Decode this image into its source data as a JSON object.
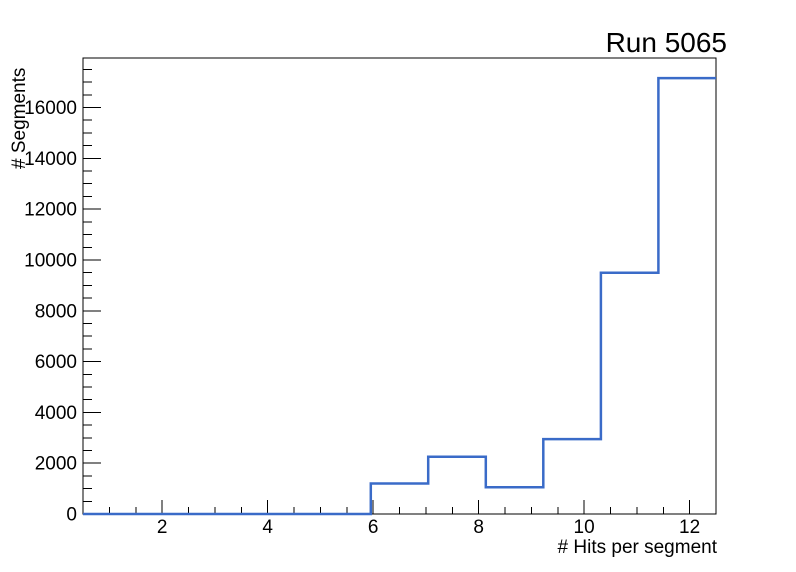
{
  "chart_data": {
    "type": "bar",
    "style": "step-histogram-outline",
    "title": "Run 5065",
    "xlabel": "# Hits per segment",
    "ylabel": "# Segments",
    "xlim": [
      0.5,
      12.5
    ],
    "ylim": [
      0,
      17950
    ],
    "n_bins": 11,
    "bin_width": 1.0909,
    "bin_edges": [
      0.5,
      1.591,
      2.682,
      3.773,
      4.864,
      5.955,
      7.045,
      8.136,
      9.227,
      10.318,
      11.409,
      12.5
    ],
    "counts": [
      0,
      0,
      0,
      0,
      0,
      1200,
      2250,
      1050,
      2950,
      9500,
      17160
    ],
    "x_major_ticks": [
      2,
      4,
      6,
      8,
      10,
      12
    ],
    "x_minor_step": 0.5,
    "y_major_ticks": [
      0,
      2000,
      4000,
      6000,
      8000,
      10000,
      12000,
      14000,
      16000
    ],
    "y_minor_step": 500,
    "grid": false,
    "legend": null,
    "line_color": "#3a6bc8",
    "axis_color": "#000000",
    "text_color": "#000000",
    "background_color": "#ffffff"
  }
}
